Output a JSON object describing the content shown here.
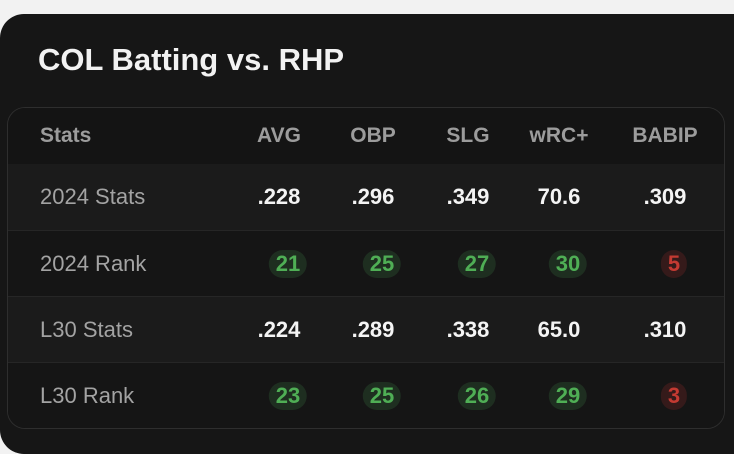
{
  "header": {
    "title": "COL Batting vs. RHP"
  },
  "table": {
    "columns": [
      "Stats",
      "AVG",
      "OBP",
      "SLG",
      "wRC+",
      "BABIP"
    ],
    "rows": [
      {
        "label": "2024 Stats",
        "values": [
          ".228",
          ".296",
          ".349",
          "70.6",
          ".309"
        ]
      },
      {
        "label": "2024 Rank",
        "values": [
          "21",
          "25",
          "27",
          "30",
          "5"
        ],
        "badge_colors": [
          "green",
          "green",
          "green",
          "green",
          "red"
        ]
      },
      {
        "label": "L30 Stats",
        "values": [
          ".224",
          ".289",
          ".338",
          "65.0",
          ".310"
        ]
      },
      {
        "label": "L30 Rank",
        "values": [
          "23",
          "25",
          "26",
          "29",
          "3"
        ],
        "badge_colors": [
          "green",
          "green",
          "green",
          "green",
          "red"
        ]
      }
    ]
  }
}
